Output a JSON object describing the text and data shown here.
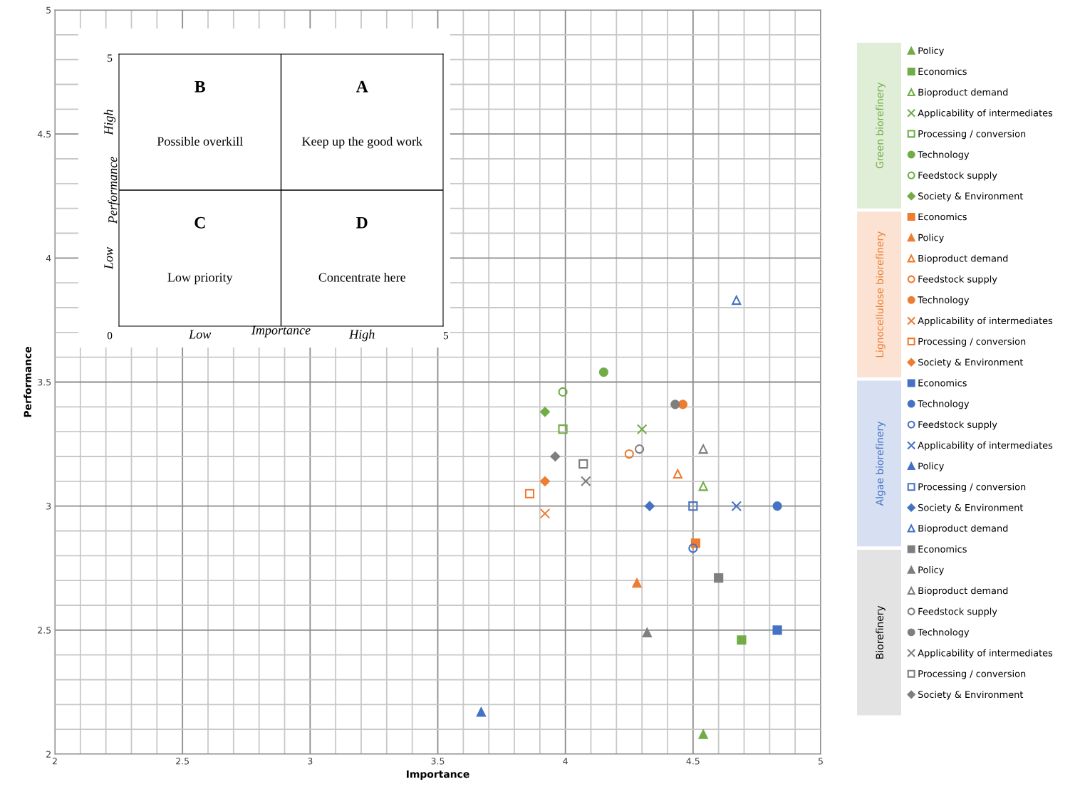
{
  "chart_data": [
    {
      "type": "scatter",
      "xlabel": "Importance",
      "ylabel": "Performance",
      "xlim": [
        2,
        5
      ],
      "ylim": [
        2,
        5
      ],
      "xticks": [
        2,
        2.5,
        3,
        3.5,
        4,
        4.5,
        5
      ],
      "yticks": [
        2,
        2.5,
        3,
        3.5,
        4,
        4.5,
        5
      ],
      "grid": true,
      "legend": "right",
      "annotations": [
        "Green biorefinery",
        "Lignocellulose biorefinery",
        "Algae biorefinery",
        "Biorefinery"
      ],
      "series": [
        {
          "name": "Policy",
          "color": "#70ad47",
          "marker": "triangle",
          "x": [
            4.54
          ],
          "values": [
            2.08
          ]
        },
        {
          "name": "Economics",
          "color": "#70ad47",
          "marker": "square",
          "x": [
            4.69
          ],
          "values": [
            2.46
          ]
        },
        {
          "name": "Bioproduct demand",
          "color": "#70ad47",
          "marker": "triangle-open",
          "x": [
            4.54
          ],
          "values": [
            3.08
          ]
        },
        {
          "name": "Applicability of intermediates",
          "color": "#70ad47",
          "marker": "cross",
          "x": [
            4.3
          ],
          "values": [
            3.31
          ]
        },
        {
          "name": "Processing / conversion",
          "color": "#70ad47",
          "marker": "square-open",
          "x": [
            3.99
          ],
          "values": [
            3.31
          ]
        },
        {
          "name": "Technology",
          "color": "#70ad47",
          "marker": "circle",
          "x": [
            4.15
          ],
          "values": [
            3.54
          ]
        },
        {
          "name": "Feedstock supply",
          "color": "#70ad47",
          "marker": "circle-open",
          "x": [
            3.99
          ],
          "values": [
            3.46
          ]
        },
        {
          "name": "Society & Environment",
          "color": "#70ad47",
          "marker": "diamond",
          "x": [
            3.92
          ],
          "values": [
            3.38
          ]
        },
        {
          "name": "Economics",
          "color": "#ed7d31",
          "marker": "square",
          "x": [
            4.51
          ],
          "values": [
            2.85
          ]
        },
        {
          "name": "Policy",
          "color": "#ed7d31",
          "marker": "triangle",
          "x": [
            4.28
          ],
          "values": [
            2.69
          ]
        },
        {
          "name": "Bioproduct demand",
          "color": "#ed7d31",
          "marker": "triangle-open",
          "x": [
            4.44
          ],
          "values": [
            3.13
          ]
        },
        {
          "name": "Feedstock supply",
          "color": "#ed7d31",
          "marker": "circle-open",
          "x": [
            4.25
          ],
          "values": [
            3.21
          ]
        },
        {
          "name": "Technology",
          "color": "#ed7d31",
          "marker": "circle",
          "x": [
            4.46
          ],
          "values": [
            3.41
          ]
        },
        {
          "name": "Applicability of intermediates",
          "color": "#ed7d31",
          "marker": "cross",
          "x": [
            3.92
          ],
          "values": [
            2.97
          ]
        },
        {
          "name": "Processing / conversion",
          "color": "#ed7d31",
          "marker": "square-open",
          "x": [
            3.86
          ],
          "values": [
            3.05
          ]
        },
        {
          "name": "Society & Environment",
          "color": "#ed7d31",
          "marker": "diamond",
          "x": [
            3.92
          ],
          "values": [
            3.1
          ]
        },
        {
          "name": "Economics",
          "color": "#4472c4",
          "marker": "square",
          "x": [
            4.83
          ],
          "values": [
            2.5
          ]
        },
        {
          "name": "Technology",
          "color": "#4472c4",
          "marker": "circle",
          "x": [
            4.83
          ],
          "values": [
            3.0
          ]
        },
        {
          "name": "Feedstock supply",
          "color": "#4472c4",
          "marker": "circle-open",
          "x": [
            4.5
          ],
          "values": [
            2.83
          ]
        },
        {
          "name": "Applicability of intermediates",
          "color": "#4472c4",
          "marker": "cross",
          "x": [
            4.67
          ],
          "values": [
            3.0
          ]
        },
        {
          "name": "Policy",
          "color": "#4472c4",
          "marker": "triangle",
          "x": [
            3.67
          ],
          "values": [
            2.17
          ]
        },
        {
          "name": "Processing / conversion",
          "color": "#4472c4",
          "marker": "square-open",
          "x": [
            4.5
          ],
          "values": [
            3.0
          ]
        },
        {
          "name": "Society & Environment",
          "color": "#4472c4",
          "marker": "diamond",
          "x": [
            4.33
          ],
          "values": [
            3.0
          ]
        },
        {
          "name": "Bioproduct demand",
          "color": "#4472c4",
          "marker": "triangle-open",
          "x": [
            4.67
          ],
          "values": [
            3.83
          ]
        },
        {
          "name": "Economics",
          "color": "#7f7f7f",
          "marker": "square",
          "x": [
            4.6
          ],
          "values": [
            2.71
          ]
        },
        {
          "name": "Policy",
          "color": "#7f7f7f",
          "marker": "triangle",
          "x": [
            4.32
          ],
          "values": [
            2.49
          ]
        },
        {
          "name": "Bioproduct demand",
          "color": "#7f7f7f",
          "marker": "triangle-open",
          "x": [
            4.54
          ],
          "values": [
            3.23
          ]
        },
        {
          "name": "Feedstock supply",
          "color": "#7f7f7f",
          "marker": "circle-open",
          "x": [
            4.29
          ],
          "values": [
            3.23
          ]
        },
        {
          "name": "Technology",
          "color": "#7f7f7f",
          "marker": "circle",
          "x": [
            4.43
          ],
          "values": [
            3.41
          ]
        },
        {
          "name": "Applicability of intermediates",
          "color": "#7f7f7f",
          "marker": "cross",
          "x": [
            4.08
          ],
          "values": [
            3.1
          ]
        },
        {
          "name": "Processing / conversion",
          "color": "#7f7f7f",
          "marker": "square-open",
          "x": [
            4.07
          ],
          "values": [
            3.17
          ]
        },
        {
          "name": "Society & Environment",
          "color": "#7f7f7f",
          "marker": "diamond",
          "x": [
            3.96
          ],
          "values": [
            3.2
          ]
        }
      ]
    },
    {
      "type": "other",
      "xlabel": "Importance",
      "ylabel": "Performance",
      "categories": [
        "Low",
        "High"
      ],
      "y_categories": [
        "High",
        "Low"
      ],
      "cells": [
        [
          null,
          null
        ],
        [
          null,
          null
        ]
      ],
      "cell_labels": [
        [
          "B\nPossible overkill",
          "A\nKeep up the good work"
        ],
        [
          "C\nLow priority",
          "D\nConcentrate here"
        ]
      ],
      "annotations": [
        "0",
        "5",
        "5"
      ]
    }
  ]
}
